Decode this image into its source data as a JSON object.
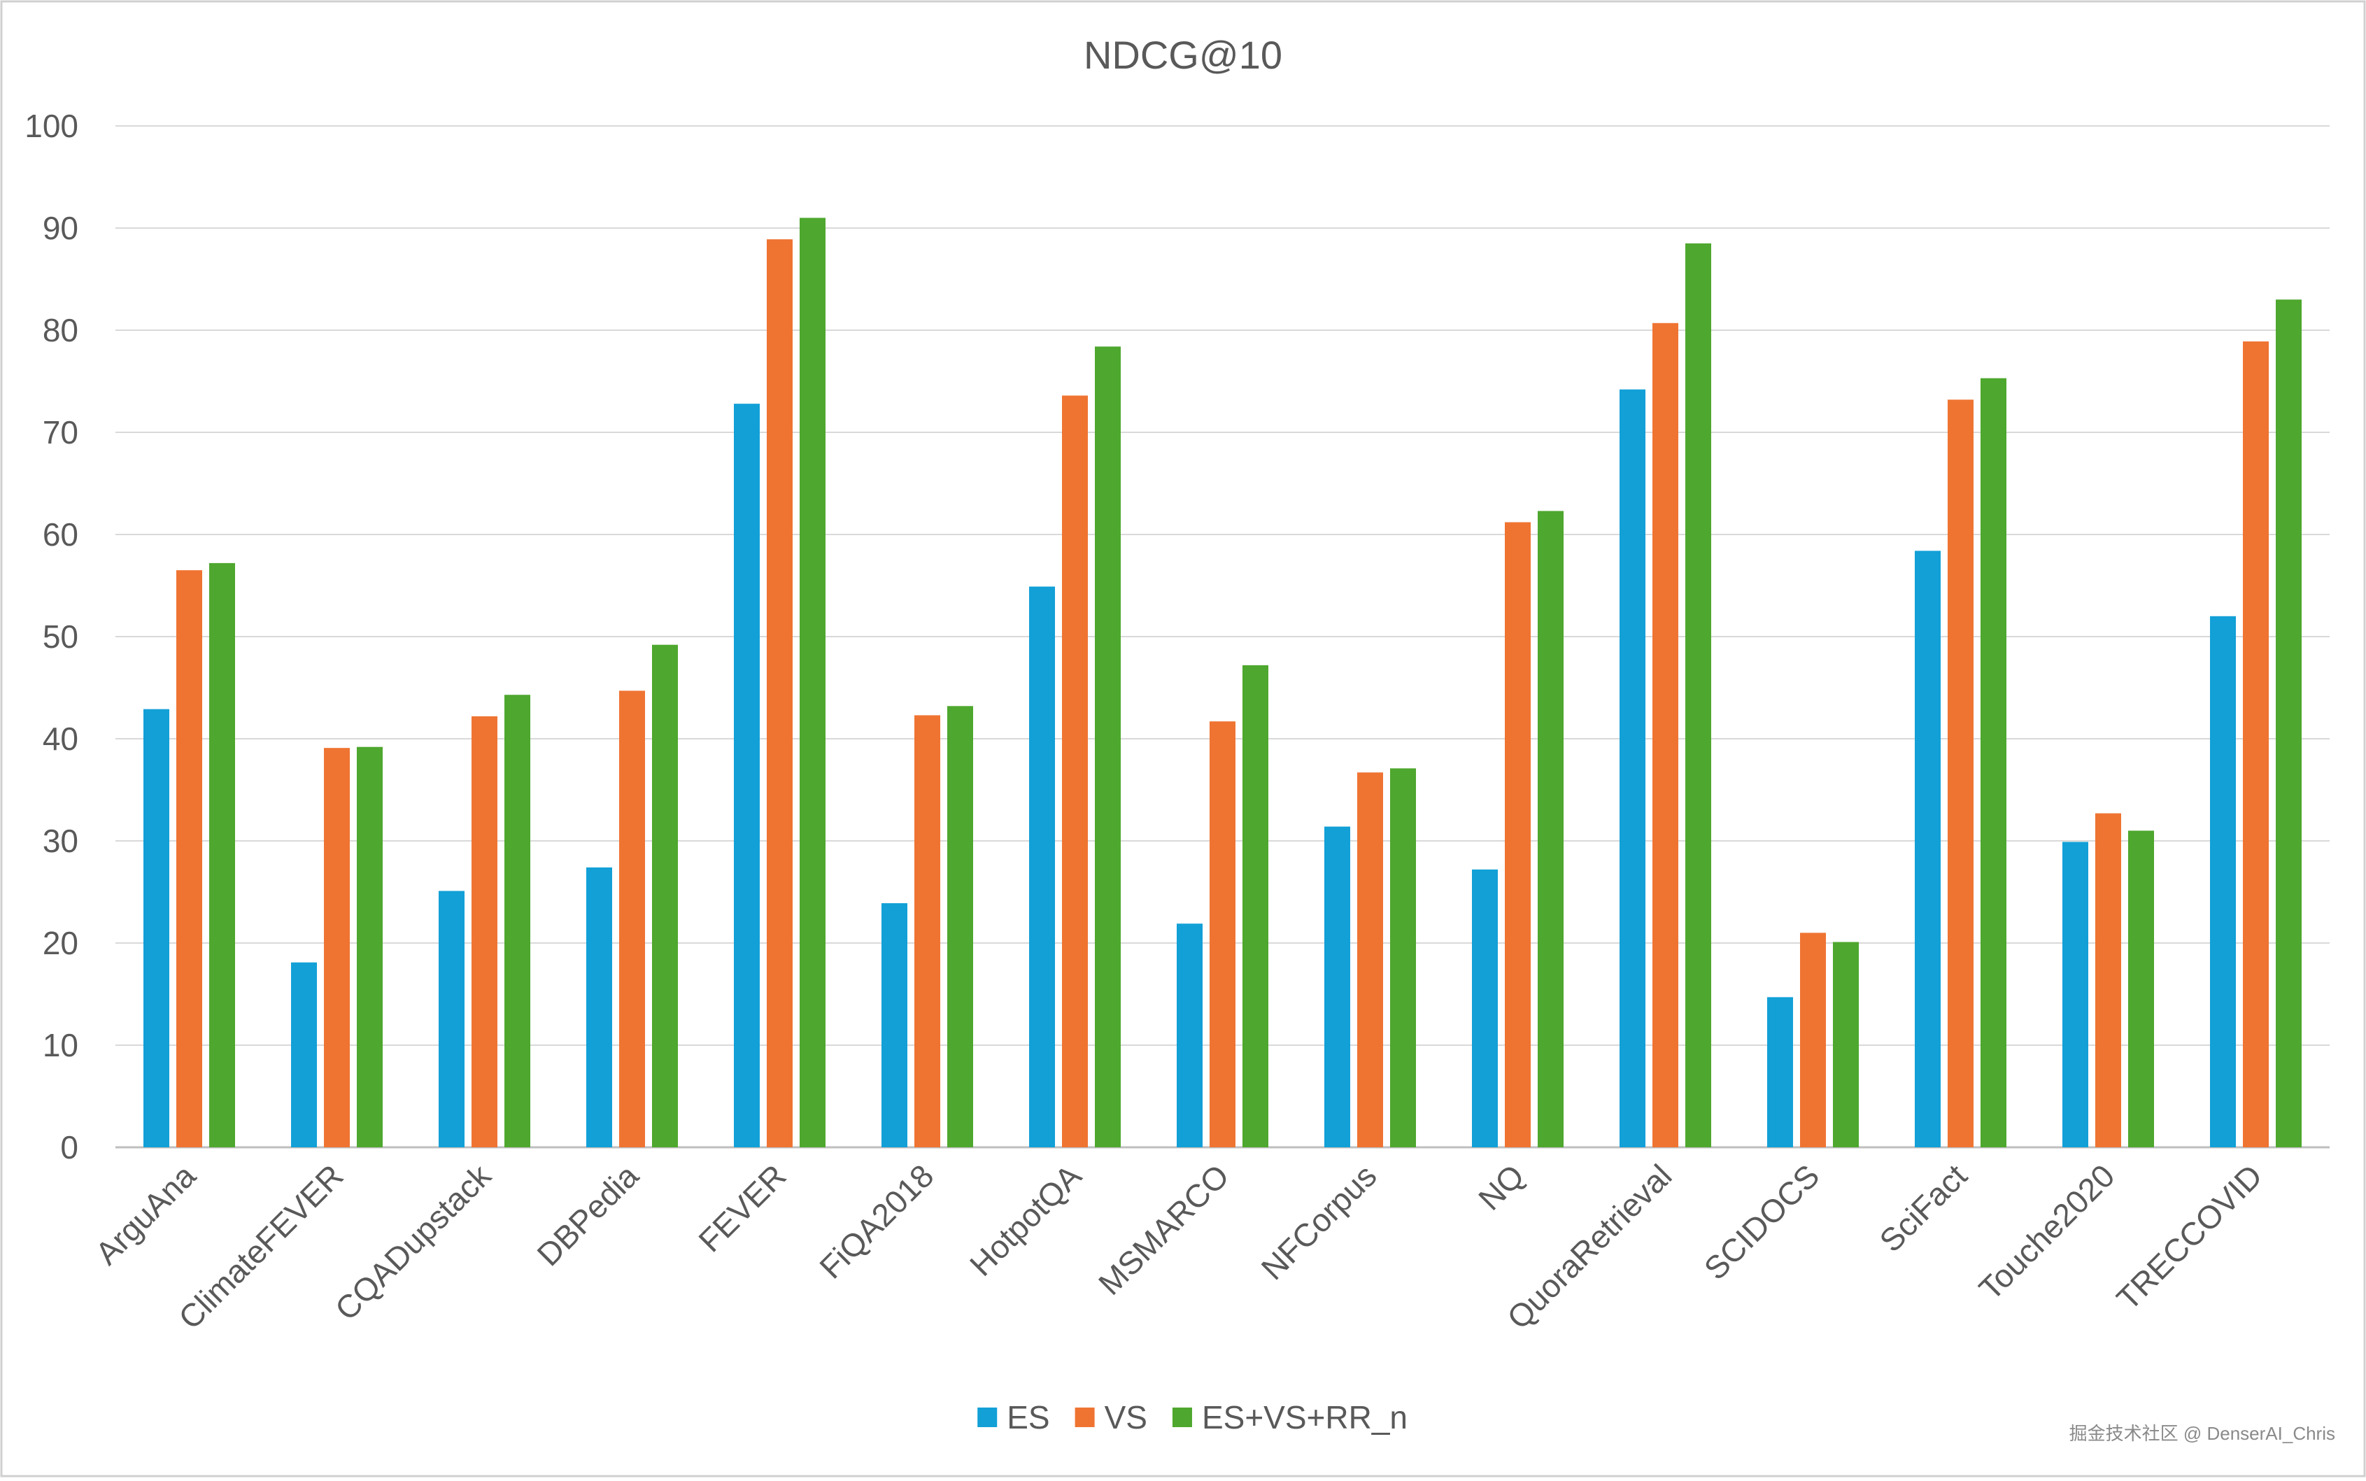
{
  "chart_data": {
    "type": "bar",
    "title": "NDCG@10",
    "xlabel": "",
    "ylabel": "",
    "ylim": [
      0,
      100
    ],
    "yticks": [
      0,
      10,
      20,
      30,
      40,
      50,
      60,
      70,
      80,
      90,
      100
    ],
    "grid": true,
    "legend_position": "bottom",
    "categories": [
      "ArguAna",
      "ClimateFEVER",
      "CQADupstack",
      "DBPedia",
      "FEVER",
      "FiQA2018",
      "HotpotQA",
      "MSMARCO",
      "NFCorpus",
      "NQ",
      "QuoraRetrieval",
      "SCIDOCS",
      "SciFact",
      "Touche2020",
      "TRECCOVID"
    ],
    "series": [
      {
        "name": "ES",
        "color": "#12a0d7",
        "values": [
          42.9,
          18.1,
          25.1,
          27.4,
          72.8,
          23.9,
          54.9,
          21.9,
          31.4,
          27.2,
          74.2,
          14.7,
          58.4,
          29.9,
          52.0
        ]
      },
      {
        "name": "VS",
        "color": "#ef7432",
        "values": [
          56.5,
          39.1,
          42.2,
          44.7,
          88.9,
          42.3,
          73.6,
          41.7,
          36.7,
          61.2,
          80.7,
          21.0,
          73.2,
          32.7,
          78.9
        ]
      },
      {
        "name": "ES+VS+RR_n",
        "color": "#4ea72e",
        "values": [
          57.2,
          39.2,
          44.3,
          49.2,
          91.0,
          43.2,
          78.4,
          47.2,
          37.1,
          62.3,
          88.5,
          20.1,
          75.3,
          31.0,
          83.0
        ]
      }
    ],
    "watermark": "掘金技术社区 @ DenserAI_Chris"
  }
}
